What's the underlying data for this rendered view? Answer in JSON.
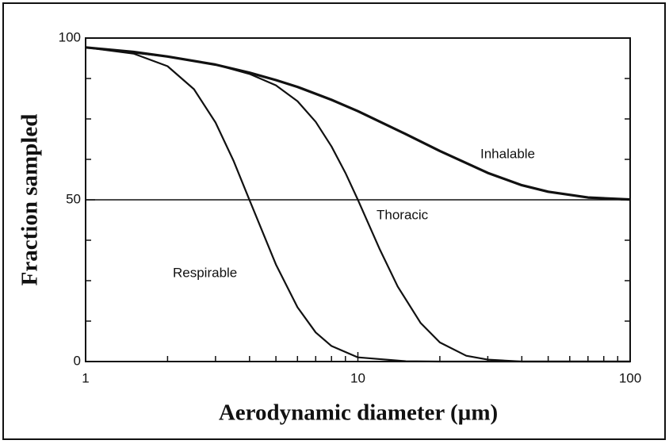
{
  "chart_data": {
    "type": "line",
    "x_label": "Aerodynamic diameter (µm)",
    "y_label": "Fraction sampled",
    "xscale": "log",
    "xlim": [
      1,
      100
    ],
    "ylim": [
      0,
      100
    ],
    "xticks": [
      1,
      10,
      100
    ],
    "yticks": [
      0,
      50,
      100
    ],
    "xminor_ticks": [
      2,
      3,
      4,
      5,
      6,
      7,
      8,
      9,
      20,
      30,
      40,
      50,
      60,
      70,
      80,
      90
    ],
    "yminor_ticks": [
      12.5,
      25,
      37.5,
      62.5,
      75,
      87.5
    ],
    "reference_line": 50,
    "series": [
      {
        "name": "Inhalable",
        "color": "#111111",
        "x": [
          1,
          1.5,
          2,
          3,
          4,
          5,
          6,
          8,
          10,
          15,
          20,
          30,
          40,
          50,
          70,
          100
        ],
        "values": [
          97.1,
          95.7,
          94.3,
          91.8,
          89.3,
          87.0,
          84.9,
          80.9,
          77.4,
          70.3,
          65.1,
          58.3,
          54.5,
          52.5,
          50.7,
          50.1
        ]
      },
      {
        "name": "Thoracic",
        "color": "#111111",
        "x": [
          1,
          2,
          3,
          4,
          5,
          6,
          7,
          8,
          9,
          10,
          12,
          14,
          17,
          20,
          25,
          30,
          40,
          100
        ],
        "values": [
          97.1,
          94.3,
          91.8,
          88.9,
          85.4,
          80.5,
          74.1,
          66.5,
          58.3,
          50.0,
          34.9,
          23.2,
          11.9,
          5.9,
          1.8,
          0.6,
          0,
          0
        ]
      },
      {
        "name": "Respirable",
        "color": "#111111",
        "x": [
          1,
          1.5,
          2,
          2.5,
          3,
          3.5,
          4,
          5,
          6,
          7,
          8,
          10,
          15,
          20,
          100
        ],
        "values": [
          97.1,
          95.2,
          91.3,
          84.2,
          73.9,
          61.9,
          49.9,
          30.0,
          16.8,
          9.0,
          4.8,
          1.3,
          0.1,
          0,
          0
        ]
      }
    ]
  }
}
